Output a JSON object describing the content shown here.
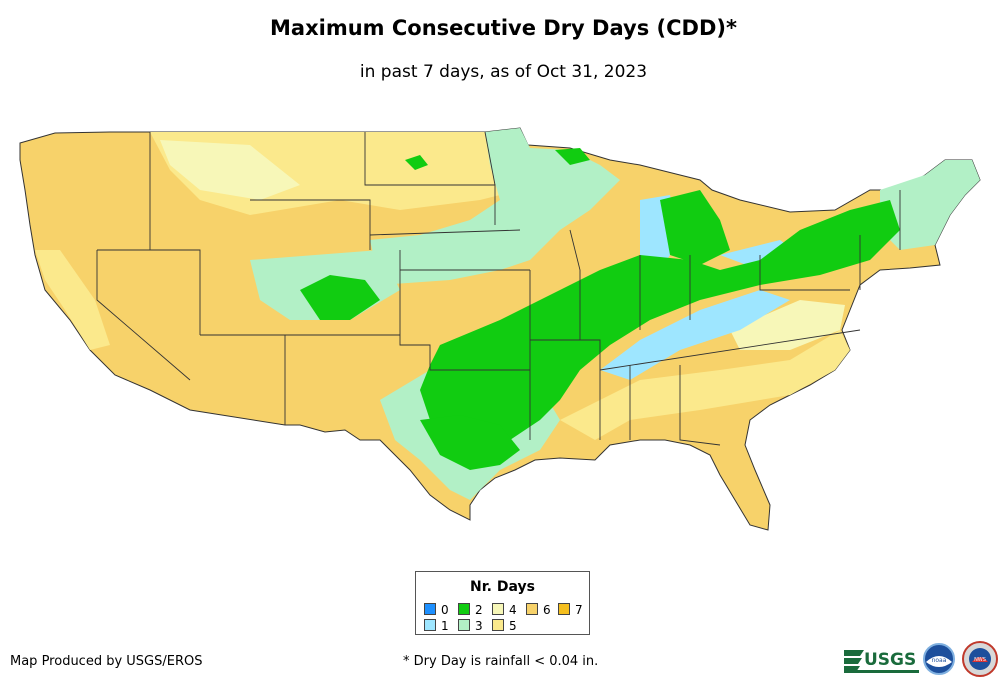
{
  "title": "Maximum Consecutive Dry Days (CDD)*",
  "subtitle": "in past 7 days, as of Oct 31, 2023",
  "legend": {
    "title": "Nr. Days",
    "items": [
      {
        "label": "0",
        "color": "#1e90ff"
      },
      {
        "label": "1",
        "color": "#9ee6ff"
      },
      {
        "label": "2",
        "color": "#11cc11"
      },
      {
        "label": "3",
        "color": "#b2f0c6"
      },
      {
        "label": "4",
        "color": "#f7f7b8"
      },
      {
        "label": "5",
        "color": "#fbe98c"
      },
      {
        "label": "6",
        "color": "#f7d26a"
      },
      {
        "label": "7",
        "color": "#f5bf1e"
      }
    ]
  },
  "credit": "Map Produced by USGS/EROS",
  "footnote": "* Dry Day is rainfall < 0.04 in.",
  "logos": {
    "usgs": "USGS",
    "noaa": "noaa",
    "nws": "NWS"
  }
}
